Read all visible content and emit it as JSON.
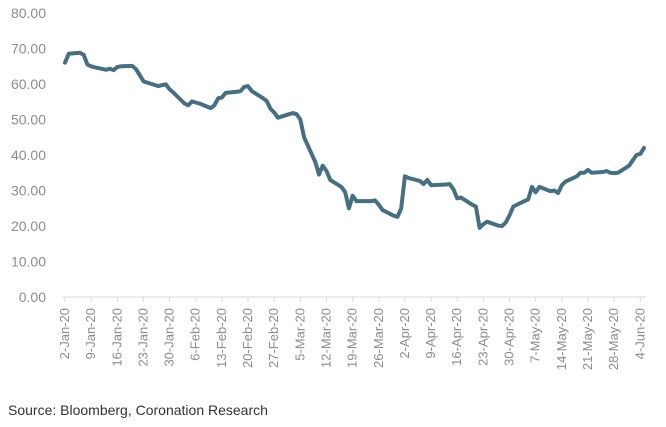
{
  "chart_data": {
    "type": "line",
    "title": "",
    "xlabel": "",
    "ylabel": "",
    "ylim": [
      0,
      80
    ],
    "yticks": [
      "0.00",
      "10.00",
      "20.00",
      "30.00",
      "40.00",
      "50.00",
      "60.00",
      "70.00",
      "80.00"
    ],
    "xticks": [
      "2-Jan-20",
      "9-Jan-20",
      "16-Jan-20",
      "23-Jan-20",
      "30-Jan-20",
      "6-Feb-20",
      "13-Feb-20",
      "20-Feb-20",
      "27-Feb-20",
      "5-Mar-20",
      "12-Mar-20",
      "19-Mar-20",
      "26-Mar-20",
      "2-Apr-20",
      "9-Apr-20",
      "16-Apr-20",
      "23-Apr-20",
      "30-Apr-20",
      "7-May-20",
      "14-May-20",
      "21-May-20",
      "28-May-20",
      "4-Jun-20"
    ],
    "grid": false,
    "legend": "none",
    "line_color": "#466f82",
    "series": [
      {
        "x": [
          "2020-01-02",
          "2020-01-03",
          "2020-01-06",
          "2020-01-07",
          "2020-01-08",
          "2020-01-09",
          "2020-01-10",
          "2020-01-13",
          "2020-01-14",
          "2020-01-15",
          "2020-01-16",
          "2020-01-17",
          "2020-01-20",
          "2020-01-21",
          "2020-01-22",
          "2020-01-23",
          "2020-01-24",
          "2020-01-27",
          "2020-01-28",
          "2020-01-29",
          "2020-01-30",
          "2020-01-31",
          "2020-02-03",
          "2020-02-04",
          "2020-02-05",
          "2020-02-06",
          "2020-02-07",
          "2020-02-10",
          "2020-02-11",
          "2020-02-12",
          "2020-02-13",
          "2020-02-14",
          "2020-02-17",
          "2020-02-18",
          "2020-02-19",
          "2020-02-20",
          "2020-02-21",
          "2020-02-24",
          "2020-02-25",
          "2020-02-26",
          "2020-02-27",
          "2020-02-28",
          "2020-03-02",
          "2020-03-03",
          "2020-03-04",
          "2020-03-05",
          "2020-03-06",
          "2020-03-09",
          "2020-03-10",
          "2020-03-11",
          "2020-03-12",
          "2020-03-13",
          "2020-03-16",
          "2020-03-17",
          "2020-03-18",
          "2020-03-19",
          "2020-03-20",
          "2020-03-23",
          "2020-03-24",
          "2020-03-25",
          "2020-03-26",
          "2020-03-27",
          "2020-03-30",
          "2020-03-31",
          "2020-04-01",
          "2020-04-02",
          "2020-04-03",
          "2020-04-06",
          "2020-04-07",
          "2020-04-08",
          "2020-04-09",
          "2020-04-13",
          "2020-04-14",
          "2020-04-15",
          "2020-04-16",
          "2020-04-17",
          "2020-04-20",
          "2020-04-21",
          "2020-04-22",
          "2020-04-23",
          "2020-04-24",
          "2020-04-27",
          "2020-04-28",
          "2020-04-29",
          "2020-04-30",
          "2020-05-01",
          "2020-05-04",
          "2020-05-05",
          "2020-05-06",
          "2020-05-07",
          "2020-05-08",
          "2020-05-11",
          "2020-05-12",
          "2020-05-13",
          "2020-05-14",
          "2020-05-15",
          "2020-05-18",
          "2020-05-19",
          "2020-05-20",
          "2020-05-21",
          "2020-05-22",
          "2020-05-25",
          "2020-05-26",
          "2020-05-27",
          "2020-05-28",
          "2020-05-29",
          "2020-06-01",
          "2020-06-02",
          "2020-06-03",
          "2020-06-04",
          "2020-06-05"
        ],
        "values": [
          66.0,
          68.5,
          68.8,
          68.2,
          65.5,
          65.0,
          64.7,
          64.0,
          64.3,
          63.9,
          64.8,
          65.0,
          65.1,
          64.2,
          62.5,
          60.8,
          60.4,
          59.4,
          59.7,
          59.9,
          58.5,
          57.6,
          54.5,
          54.0,
          55.1,
          54.8,
          54.5,
          53.2,
          54.0,
          56.0,
          56.2,
          57.5,
          57.8,
          58.0,
          59.2,
          59.4,
          58.0,
          56.0,
          55.2,
          53.0,
          52.0,
          50.5,
          51.5,
          51.8,
          51.5,
          50.0,
          45.0,
          38.0,
          34.5,
          37.0,
          35.5,
          33.0,
          31.0,
          29.5,
          25.0,
          28.5,
          27.0,
          27.0,
          27.0,
          27.2,
          26.0,
          24.5,
          22.9,
          22.6,
          25.0,
          34.0,
          33.5,
          32.7,
          31.8,
          33.0,
          31.5,
          31.7,
          31.8,
          30.3,
          27.8,
          28.0,
          26.0,
          25.5,
          19.5,
          20.5,
          21.2,
          20.1,
          20.0,
          21.0,
          23.0,
          25.5,
          27.0,
          27.5,
          31.0,
          29.5,
          31.0,
          29.8,
          30.0,
          29.3,
          31.5,
          32.5,
          34.0,
          35.0,
          35.0,
          35.8,
          35.0,
          35.2,
          35.5,
          35.0,
          34.9,
          35.0,
          37.0,
          38.5,
          40.0,
          40.3,
          42.0
        ]
      }
    ],
    "source": "Source: Bloomberg, Coronation Research"
  }
}
